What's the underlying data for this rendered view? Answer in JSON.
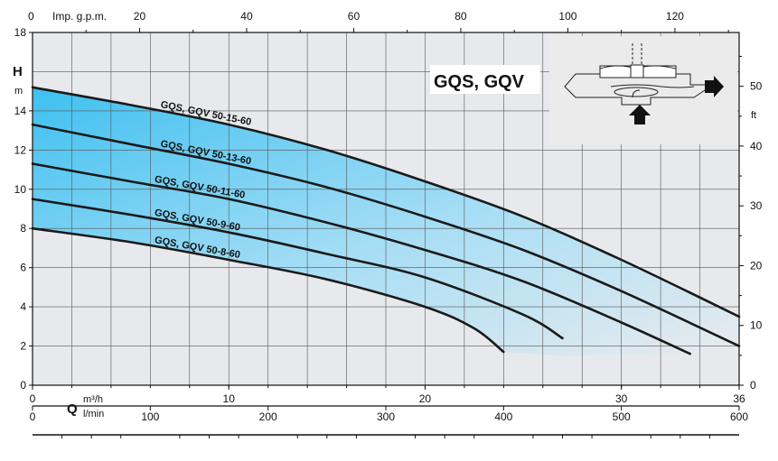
{
  "chart_data": {
    "type": "line",
    "badge": "GQS, GQV",
    "left_axis": {
      "symbol": "H",
      "unit": "m",
      "ylim": [
        0,
        18
      ],
      "ticks": [
        "0",
        "2",
        "4",
        "6",
        "8",
        "10",
        "12",
        "14",
        "18"
      ],
      "tick_values": [
        0,
        2,
        4,
        6,
        8,
        10,
        12,
        14,
        18
      ]
    },
    "right_axis": {
      "unit": "ft",
      "ylim_ft": [
        0,
        59
      ],
      "ticks": [
        "0",
        "10",
        "20",
        "30",
        "40",
        "50"
      ],
      "tick_values": [
        0,
        10,
        20,
        30,
        40,
        50
      ]
    },
    "top_axis": {
      "label": "Imp. g.p.m.",
      "zero_label": "0",
      "xlim": [
        0,
        132
      ],
      "ticks": [
        "20",
        "40",
        "60",
        "80",
        "100",
        "120"
      ],
      "tick_values": [
        20,
        40,
        60,
        80,
        100,
        120
      ]
    },
    "bottom_axis_m3h": {
      "symbol": "Q",
      "unit": "m³/h",
      "xlim": [
        0,
        36
      ],
      "ticks": [
        "0",
        "10",
        "20",
        "30",
        "36"
      ],
      "tick_values": [
        0,
        10,
        20,
        30,
        36
      ]
    },
    "bottom_axis_lmin": {
      "unit": "l/min",
      "xlim": [
        0,
        600
      ],
      "ticks": [
        "0",
        "100",
        "200",
        "300",
        "400",
        "500",
        "600"
      ],
      "tick_values": [
        0,
        100,
        200,
        300,
        400,
        500,
        600
      ]
    },
    "series": [
      {
        "name": "GQS, GQV 50-15-60",
        "x": [
          0,
          5,
          10,
          15,
          20,
          25,
          30,
          36
        ],
        "y": [
          15.2,
          14.3,
          13.3,
          12.0,
          10.4,
          8.6,
          6.4,
          3.5
        ]
      },
      {
        "name": "GQS, GQV 50-13-60",
        "x": [
          0,
          5,
          10,
          15,
          20,
          25,
          30,
          36
        ],
        "y": [
          13.3,
          12.3,
          11.3,
          10.1,
          8.6,
          6.9,
          4.8,
          2.0
        ]
      },
      {
        "name": "GQS, GQV 50-11-60",
        "x": [
          0,
          5,
          10,
          15,
          20,
          25,
          30,
          33.5
        ],
        "y": [
          11.3,
          10.4,
          9.5,
          8.3,
          6.9,
          5.3,
          3.2,
          1.6
        ]
      },
      {
        "name": "GQS, GQV 50-9-60",
        "x": [
          0,
          5,
          10,
          15,
          20,
          25,
          27
        ],
        "y": [
          9.5,
          8.7,
          7.8,
          6.7,
          5.5,
          3.6,
          2.4
        ]
      },
      {
        "name": "GQS, GQV 50-8-60",
        "x": [
          0,
          5,
          10,
          15,
          20,
          22.5,
          24
        ],
        "y": [
          8.0,
          7.3,
          6.4,
          5.4,
          4.0,
          2.9,
          1.7
        ]
      }
    ],
    "grid": true,
    "colors": {
      "fill_top": "#5bc8f0",
      "fill_bottom": "#e6e8ea",
      "curve": "#1a1a1a",
      "grid": "#555555"
    }
  }
}
